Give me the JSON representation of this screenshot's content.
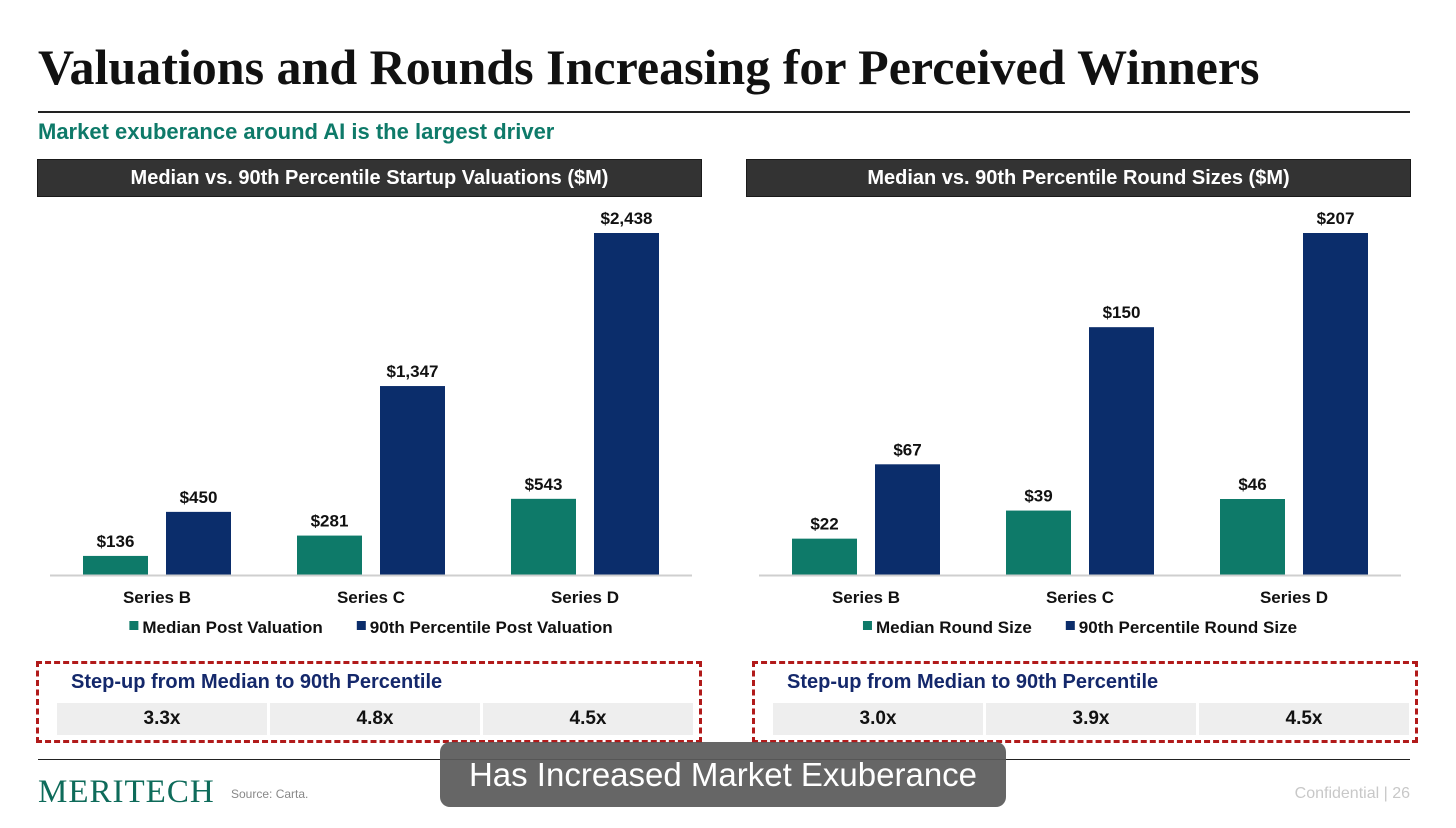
{
  "slide": {
    "title": "Valuations and Rounds Increasing for Perceived Winners",
    "subtitle": "Market exuberance around AI is the largest driver",
    "logo": "MERITECH",
    "source": "Source: Carta.",
    "confidential": "Confidential | 26",
    "caption": "Has Increased Market Exuberance"
  },
  "colors": {
    "median": "#0e7a69",
    "p90": "#0b2d6b",
    "accent": "#0e7a69",
    "stepbox_border": "#b11a1a"
  },
  "chart_data": [
    {
      "type": "bar",
      "title": "Median vs. 90th Percentile Startup Valuations ($M)",
      "categories": [
        "Series B",
        "Series C",
        "Series D"
      ],
      "series": [
        {
          "name": "Median Post Valuation",
          "values": [
            136,
            281,
            543
          ],
          "labels": [
            "$136",
            "$281",
            "$543"
          ]
        },
        {
          "name": "90th Percentile Post Valuation",
          "values": [
            450,
            1347,
            2438
          ],
          "labels": [
            "$450",
            "$1,347",
            "$2,438"
          ]
        }
      ],
      "ylim": [
        0,
        2438
      ],
      "grid": false,
      "legend": "bottom",
      "stepup": {
        "label": "Step-up from Median to 90th Percentile",
        "values": [
          "3.3x",
          "4.8x",
          "4.5x"
        ]
      }
    },
    {
      "type": "bar",
      "title": "Median vs. 90th Percentile Round Sizes ($M)",
      "categories": [
        "Series B",
        "Series C",
        "Series D"
      ],
      "series": [
        {
          "name": "Median Round Size",
          "values": [
            22,
            39,
            46
          ],
          "labels": [
            "$22",
            "$39",
            "$46"
          ]
        },
        {
          "name": "90th Percentile Round Size",
          "values": [
            67,
            150,
            207
          ],
          "labels": [
            "$67",
            "$150",
            "$207"
          ]
        }
      ],
      "ylim": [
        0,
        207
      ],
      "grid": false,
      "legend": "bottom",
      "stepup": {
        "label": "Step-up from Median to 90th Percentile",
        "values": [
          "3.0x",
          "3.9x",
          "4.5x"
        ]
      }
    }
  ]
}
